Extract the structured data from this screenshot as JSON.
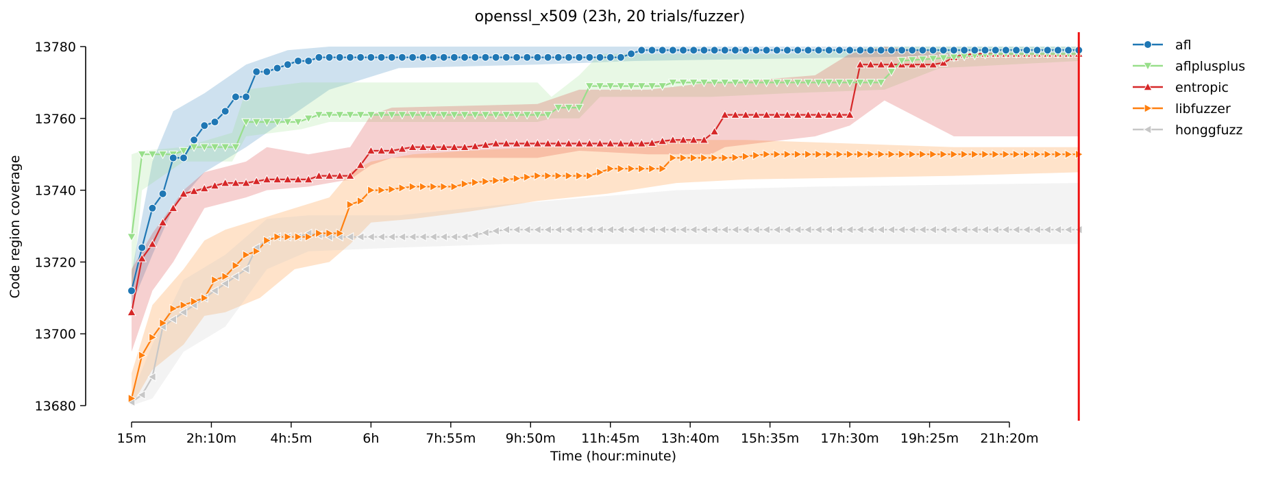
{
  "chart_data": {
    "type": "line",
    "title": "openssl_x509 (23h, 20 trials/fuzzer)",
    "xlabel": "Time (hour:minute)",
    "ylabel": "Code region coverage",
    "x_unit": "minutes",
    "x_ticks": [
      {
        "value": 15,
        "label": "15m"
      },
      {
        "value": 130,
        "label": "2h:10m"
      },
      {
        "value": 245,
        "label": "4h:5m"
      },
      {
        "value": 360,
        "label": "6h"
      },
      {
        "value": 475,
        "label": "7h:55m"
      },
      {
        "value": 590,
        "label": "9h:50m"
      },
      {
        "value": 705,
        "label": "11h:45m"
      },
      {
        "value": 820,
        "label": "13h:40m"
      },
      {
        "value": 935,
        "label": "15h:35m"
      },
      {
        "value": 1050,
        "label": "17h:30m"
      },
      {
        "value": 1165,
        "label": "19h:25m"
      },
      {
        "value": 1280,
        "label": "21h:20m"
      }
    ],
    "xlim": [
      15,
      1280
    ],
    "ylim": [
      13680,
      13780
    ],
    "y_ticks": [
      13680,
      13700,
      13720,
      13740,
      13760,
      13780
    ],
    "vline_x": 1380,
    "vline_color": "#ee1111",
    "legend_position": "outside-right",
    "series": [
      {
        "name": "afl",
        "color": "#1f77b4",
        "marker": "circle",
        "points": [
          [
            15,
            13712
          ],
          [
            30,
            13724
          ],
          [
            45,
            13735
          ],
          [
            60,
            13739
          ],
          [
            75,
            13749
          ],
          [
            90,
            13749
          ],
          [
            105,
            13754
          ],
          [
            120,
            13758
          ],
          [
            135,
            13759
          ],
          [
            150,
            13762
          ],
          [
            165,
            13766
          ],
          [
            180,
            13766
          ],
          [
            195,
            13773
          ],
          [
            210,
            13773
          ],
          [
            225,
            13774
          ],
          [
            240,
            13775
          ],
          [
            255,
            13776
          ],
          [
            270,
            13776
          ],
          [
            285,
            13777
          ],
          [
            400,
            13777
          ],
          [
            600,
            13777
          ],
          [
            720,
            13777
          ],
          [
            735,
            13778
          ],
          [
            750,
            13779
          ],
          [
            1380,
            13779
          ]
        ],
        "band": [
          [
            15,
            13708,
            13717
          ],
          [
            45,
            13722,
            13748
          ],
          [
            75,
            13735,
            13762
          ],
          [
            120,
            13745,
            13767
          ],
          [
            180,
            13752,
            13775
          ],
          [
            240,
            13760,
            13779
          ],
          [
            300,
            13768,
            13780
          ],
          [
            400,
            13774,
            13780
          ],
          [
            600,
            13775,
            13780
          ],
          [
            740,
            13776,
            13780
          ],
          [
            1380,
            13778,
            13780
          ]
        ]
      },
      {
        "name": "aflplusplus",
        "color": "#98df8a",
        "marker": "triangle-down",
        "points": [
          [
            15,
            13727
          ],
          [
            30,
            13750
          ],
          [
            75,
            13750
          ],
          [
            90,
            13751
          ],
          [
            105,
            13752
          ],
          [
            165,
            13752
          ],
          [
            180,
            13759
          ],
          [
            255,
            13759
          ],
          [
            270,
            13760
          ],
          [
            285,
            13761
          ],
          [
            620,
            13761
          ],
          [
            630,
            13763
          ],
          [
            660,
            13763
          ],
          [
            675,
            13769
          ],
          [
            780,
            13769
          ],
          [
            795,
            13770
          ],
          [
            1100,
            13770
          ],
          [
            1120,
            13776
          ],
          [
            1200,
            13777
          ],
          [
            1260,
            13778
          ],
          [
            1380,
            13778
          ]
        ],
        "band": [
          [
            15,
            13710,
            13750
          ],
          [
            30,
            13740,
            13751
          ],
          [
            90,
            13748,
            13752
          ],
          [
            160,
            13748,
            13756
          ],
          [
            180,
            13755,
            13768
          ],
          [
            260,
            13757,
            13770
          ],
          [
            300,
            13759,
            13770
          ],
          [
            600,
            13759,
            13770
          ],
          [
            620,
            13760,
            13766
          ],
          [
            660,
            13760,
            13772
          ],
          [
            690,
            13766,
            13778
          ],
          [
            850,
            13766,
            13778
          ],
          [
            960,
            13767,
            13778
          ],
          [
            1100,
            13768,
            13780
          ],
          [
            1180,
            13774,
            13780
          ],
          [
            1380,
            13776,
            13780
          ]
        ]
      },
      {
        "name": "entropic",
        "color": "#d62728",
        "marker": "triangle-up",
        "points": [
          [
            15,
            13706
          ],
          [
            30,
            13721
          ],
          [
            45,
            13725
          ],
          [
            60,
            13731
          ],
          [
            75,
            13735
          ],
          [
            90,
            13739
          ],
          [
            110,
            13740
          ],
          [
            130,
            13741
          ],
          [
            150,
            13742
          ],
          [
            180,
            13742
          ],
          [
            210,
            13743
          ],
          [
            270,
            13743
          ],
          [
            285,
            13744
          ],
          [
            330,
            13744
          ],
          [
            345,
            13747
          ],
          [
            360,
            13751
          ],
          [
            390,
            13751
          ],
          [
            420,
            13752
          ],
          [
            500,
            13752
          ],
          [
            540,
            13753
          ],
          [
            700,
            13753
          ],
          [
            760,
            13753
          ],
          [
            790,
            13754
          ],
          [
            850,
            13754
          ],
          [
            865,
            13761
          ],
          [
            1050,
            13761
          ],
          [
            1065,
            13775
          ],
          [
            1180,
            13775
          ],
          [
            1200,
            13777
          ],
          [
            1220,
            13778
          ],
          [
            1380,
            13778
          ]
        ],
        "band": [
          [
            15,
            13695,
            13718
          ],
          [
            45,
            13712,
            13728
          ],
          [
            75,
            13720,
            13736
          ],
          [
            90,
            13725,
            13740
          ],
          [
            120,
            13735,
            13745
          ],
          [
            180,
            13738,
            13748
          ],
          [
            210,
            13740,
            13752
          ],
          [
            270,
            13741,
            13750
          ],
          [
            330,
            13743,
            13752
          ],
          [
            360,
            13747,
            13761
          ],
          [
            390,
            13749,
            13763
          ],
          [
            600,
            13749,
            13764
          ],
          [
            660,
            13751,
            13768
          ],
          [
            760,
            13750,
            13768
          ],
          [
            850,
            13750,
            13770
          ],
          [
            870,
            13752,
            13770
          ],
          [
            1000,
            13755,
            13772
          ],
          [
            1050,
            13758,
            13778
          ],
          [
            1100,
            13765,
            13780
          ],
          [
            1200,
            13755,
            13778
          ],
          [
            1380,
            13755,
            13778
          ]
        ]
      },
      {
        "name": "libfuzzer",
        "color": "#ff7f0e",
        "marker": "triangle-right",
        "points": [
          [
            15,
            13682
          ],
          [
            30,
            13694
          ],
          [
            45,
            13699
          ],
          [
            60,
            13703
          ],
          [
            75,
            13707
          ],
          [
            90,
            13708
          ],
          [
            105,
            13709
          ],
          [
            120,
            13710
          ],
          [
            135,
            13715
          ],
          [
            150,
            13716
          ],
          [
            165,
            13719
          ],
          [
            180,
            13722
          ],
          [
            195,
            13723
          ],
          [
            210,
            13726
          ],
          [
            225,
            13727
          ],
          [
            270,
            13727
          ],
          [
            285,
            13728
          ],
          [
            300,
            13728
          ],
          [
            315,
            13728
          ],
          [
            330,
            13736
          ],
          [
            345,
            13737
          ],
          [
            360,
            13740
          ],
          [
            380,
            13740
          ],
          [
            420,
            13741
          ],
          [
            480,
            13741
          ],
          [
            500,
            13742
          ],
          [
            560,
            13743
          ],
          [
            600,
            13744
          ],
          [
            680,
            13744
          ],
          [
            700,
            13746
          ],
          [
            750,
            13746
          ],
          [
            780,
            13746
          ],
          [
            795,
            13749
          ],
          [
            860,
            13749
          ],
          [
            880,
            13749
          ],
          [
            930,
            13750
          ],
          [
            1250,
            13750
          ],
          [
            1270,
            13750
          ],
          [
            1380,
            13750
          ]
        ],
        "band": [
          [
            15,
            13680,
            13689
          ],
          [
            45,
            13690,
            13708
          ],
          [
            90,
            13697,
            13718
          ],
          [
            120,
            13705,
            13726
          ],
          [
            150,
            13706,
            13729
          ],
          [
            200,
            13710,
            13732
          ],
          [
            250,
            13718,
            13735
          ],
          [
            300,
            13720,
            13738
          ],
          [
            330,
            13725,
            13745
          ],
          [
            360,
            13731,
            13748
          ],
          [
            420,
            13732,
            13750
          ],
          [
            500,
            13734,
            13751
          ],
          [
            600,
            13737,
            13752
          ],
          [
            700,
            13739,
            13752
          ],
          [
            800,
            13742,
            13754
          ],
          [
            900,
            13743,
            13754
          ],
          [
            1200,
            13744,
            13752
          ],
          [
            1380,
            13745,
            13752
          ]
        ]
      },
      {
        "name": "honggfuzz",
        "color": "#c7c7c7",
        "marker": "triangle-left",
        "points": [
          [
            15,
            13681
          ],
          [
            30,
            13683
          ],
          [
            45,
            13688
          ],
          [
            60,
            13702
          ],
          [
            75,
            13704
          ],
          [
            90,
            13706
          ],
          [
            105,
            13708
          ],
          [
            120,
            13710
          ],
          [
            135,
            13712
          ],
          [
            150,
            13714
          ],
          [
            165,
            13716
          ],
          [
            180,
            13718
          ],
          [
            195,
            13724
          ],
          [
            210,
            13726
          ],
          [
            225,
            13727
          ],
          [
            240,
            13727
          ],
          [
            255,
            13727
          ],
          [
            270,
            13728
          ],
          [
            300,
            13727
          ],
          [
            500,
            13727
          ],
          [
            520,
            13728
          ],
          [
            550,
            13729
          ],
          [
            1380,
            13729
          ]
        ],
        "band": [
          [
            15,
            13680,
            13683
          ],
          [
            45,
            13682,
            13697
          ],
          [
            90,
            13695,
            13715
          ],
          [
            150,
            13702,
            13722
          ],
          [
            210,
            13718,
            13732
          ],
          [
            270,
            13723,
            13733
          ],
          [
            400,
            13724,
            13733
          ],
          [
            550,
            13725,
            13736
          ],
          [
            800,
            13725,
            13740
          ],
          [
            1000,
            13725,
            13741
          ],
          [
            1380,
            13725,
            13742
          ]
        ]
      }
    ]
  }
}
